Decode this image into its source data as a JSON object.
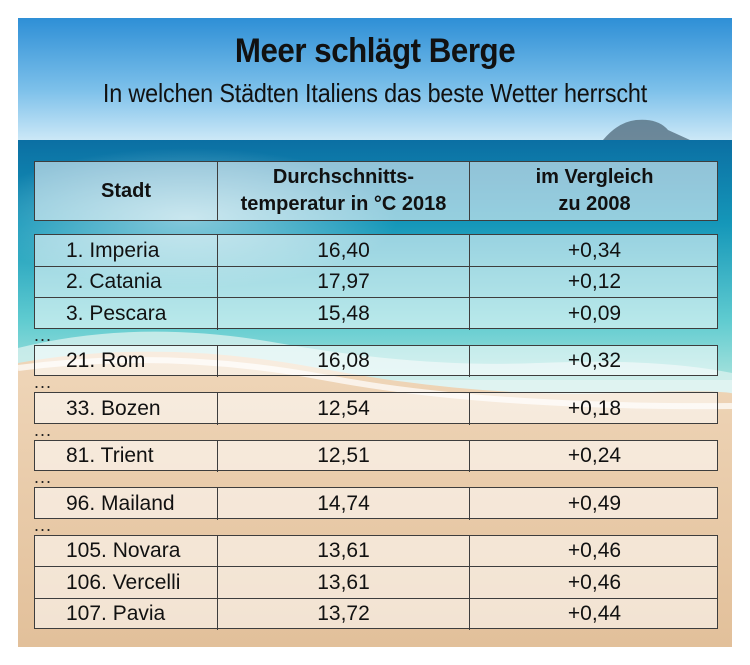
{
  "title": "Meer schlägt Berge",
  "subtitle": "In welchen Städten Italiens das beste Wetter herrscht",
  "table": {
    "headers": {
      "city": "Stadt",
      "temp_l1": "Durchschnitts-",
      "temp_l2": "temperatur in °C 2018",
      "diff_l1": "im Vergleich",
      "diff_l2": "zu 2008"
    },
    "gap_marker": "...",
    "groups": [
      [
        {
          "city": "1. Imperia",
          "temp": "16,40",
          "diff": "+0,34"
        },
        {
          "city": "2. Catania",
          "temp": "17,97",
          "diff": "+0,12"
        },
        {
          "city": "3. Pescara",
          "temp": "15,48",
          "diff": "+0,09"
        }
      ],
      [
        {
          "city": "21. Rom",
          "temp": "16,08",
          "diff": "+0,32"
        }
      ],
      [
        {
          "city": "33. Bozen",
          "temp": "12,54",
          "diff": "+0,18"
        }
      ],
      [
        {
          "city": "81. Trient",
          "temp": "12,51",
          "diff": "+0,24"
        }
      ],
      [
        {
          "city": "96. Mailand",
          "temp": "14,74",
          "diff": "+0,49"
        }
      ],
      [
        {
          "city": "105. Novara",
          "temp": "13,61",
          "diff": "+0,46"
        },
        {
          "city": "106. Vercelli",
          "temp": "13,61",
          "diff": "+0,46"
        },
        {
          "city": "107. Pavia",
          "temp": "13,72",
          "diff": "+0,44"
        }
      ]
    ]
  },
  "chart_data": {
    "type": "table",
    "title": "Meer schlägt Berge",
    "subtitle": "In welchen Städten Italiens das beste Wetter herrscht",
    "columns": [
      "Stadt",
      "Durchschnittstemperatur in °C 2018",
      "im Vergleich zu 2008"
    ],
    "rows": [
      [
        "1. Imperia",
        16.4,
        0.34
      ],
      [
        "2. Catania",
        17.97,
        0.12
      ],
      [
        "3. Pescara",
        15.48,
        0.09
      ],
      [
        "21. Rom",
        16.08,
        0.32
      ],
      [
        "33. Bozen",
        12.54,
        0.18
      ],
      [
        "81. Trient",
        12.51,
        0.24
      ],
      [
        "96. Mailand",
        14.74,
        0.49
      ],
      [
        "105. Novara",
        13.61,
        0.46
      ],
      [
        "106. Vercelli",
        13.61,
        0.46
      ],
      [
        "107. Pavia",
        13.72,
        0.44
      ]
    ]
  },
  "colors": {
    "sky_top": "#2e8fd6",
    "sky_bottom": "#cfe9f7",
    "sea": "#0f8fb7",
    "shallow": "#7fd3d6",
    "sand": "#e6c7a4",
    "grid": "#3d3d3d"
  }
}
